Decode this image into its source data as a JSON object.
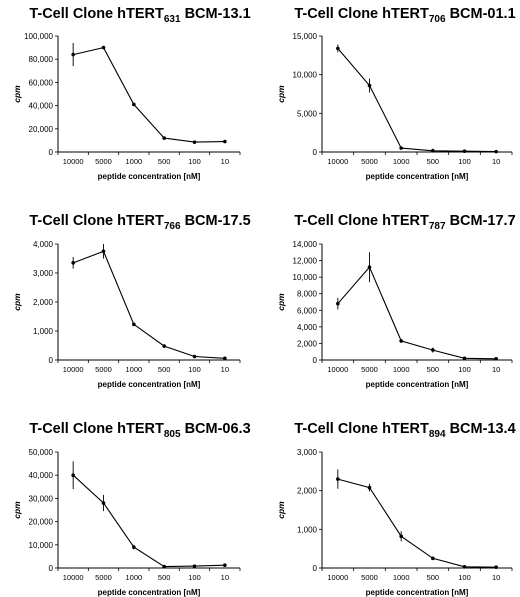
{
  "chart_data": [
    {
      "type": "line",
      "title": {
        "prefix": "T-Cell Clone hTERT",
        "sub": "631",
        "suffix": " BCM-13.1"
      },
      "xlabel": "peptide concentration [nM]",
      "ylabel": "cpm",
      "categories": [
        "10000",
        "5000",
        "1000",
        "500",
        "100",
        "10"
      ],
      "values": [
        84000,
        90000,
        41000,
        12000,
        8500,
        9000
      ],
      "errors": [
        10000,
        1000,
        1000,
        500,
        500,
        500
      ],
      "ylim": [
        0,
        100000
      ],
      "yticks": [
        0,
        20000,
        40000,
        60000,
        80000,
        100000
      ],
      "ytick_labels": [
        "0",
        "20,000",
        "40,000",
        "60,000",
        "80,000",
        "100,000"
      ]
    },
    {
      "type": "line",
      "title": {
        "prefix": "T-Cell Clone hTERT",
        "sub": "706",
        "suffix": " BCM-01.1"
      },
      "xlabel": "peptide concentration [nM]",
      "ylabel": "cpm",
      "categories": [
        "10000",
        "5000",
        "1000",
        "500",
        "100",
        "10"
      ],
      "values": [
        13400,
        8600,
        500,
        150,
        100,
        50
      ],
      "errors": [
        500,
        900,
        100,
        300,
        50,
        50
      ],
      "ylim": [
        0,
        15000
      ],
      "yticks": [
        0,
        5000,
        10000,
        15000
      ],
      "ytick_labels": [
        "0",
        "5,000",
        "10,000",
        "15,000"
      ]
    },
    {
      "type": "line",
      "title": {
        "prefix": "T-Cell Clone hTERT",
        "sub": "766",
        "suffix": "  BCM-17.5"
      },
      "xlabel": "peptide concentration [nM]",
      "ylabel": "cpm",
      "categories": [
        "10000",
        "5000",
        "1000",
        "500",
        "100",
        "10"
      ],
      "values": [
        3350,
        3750,
        1230,
        480,
        120,
        60
      ],
      "errors": [
        200,
        250,
        50,
        30,
        20,
        10
      ],
      "ylim": [
        0,
        4000
      ],
      "yticks": [
        0,
        1000,
        2000,
        3000,
        4000
      ],
      "ytick_labels": [
        "0",
        "1,000",
        "2,000",
        "3,000",
        "4,000"
      ]
    },
    {
      "type": "line",
      "title": {
        "prefix": "T-Cell Clone hTERT",
        "sub": "787",
        "suffix": " BCM-17.7"
      },
      "xlabel": "peptide concentration [nM]",
      "ylabel": "cpm",
      "categories": [
        "10000",
        "5000",
        "1000",
        "500",
        "100",
        "10"
      ],
      "values": [
        6800,
        11200,
        2300,
        1200,
        200,
        150
      ],
      "errors": [
        700,
        1800,
        100,
        300,
        100,
        200
      ],
      "ylim": [
        0,
        14000
      ],
      "yticks": [
        0,
        2000,
        4000,
        6000,
        8000,
        10000,
        12000,
        14000
      ],
      "ytick_labels": [
        "0",
        "2,000",
        "4,000",
        "6,000",
        "8,000",
        "10,000",
        "12,000",
        "14,000"
      ]
    },
    {
      "type": "line",
      "title": {
        "prefix": "T-Cell Clone hTERT",
        "sub": "805",
        "suffix": " BCM-06.3"
      },
      "xlabel": "peptide concentration [nM]",
      "ylabel": "cpm",
      "categories": [
        "10000",
        "5000",
        "1000",
        "500",
        "100",
        "10"
      ],
      "values": [
        40000,
        28000,
        9000,
        600,
        800,
        1200
      ],
      "errors": [
        6000,
        3500,
        1000,
        300,
        200,
        300
      ],
      "ylim": [
        0,
        50000
      ],
      "yticks": [
        0,
        10000,
        20000,
        30000,
        40000,
        50000
      ],
      "ytick_labels": [
        "0",
        "10,000",
        "20,000",
        "30,000",
        "40,000",
        "50,000"
      ]
    },
    {
      "type": "line",
      "title": {
        "prefix": "T-Cell Clone hTERT",
        "sub": "894",
        "suffix": " BCM-13.4"
      },
      "xlabel": "peptide concentration [nM]",
      "ylabel": "cpm",
      "categories": [
        "10000",
        "5000",
        "1000",
        "500",
        "100",
        "10"
      ],
      "values": [
        2300,
        2080,
        820,
        250,
        30,
        20
      ],
      "errors": [
        250,
        100,
        130,
        30,
        10,
        10
      ],
      "ylim": [
        0,
        3000
      ],
      "yticks": [
        0,
        1000,
        2000,
        3000
      ],
      "ytick_labels": [
        "0",
        "1,000",
        "2,000",
        "3,000"
      ]
    }
  ]
}
